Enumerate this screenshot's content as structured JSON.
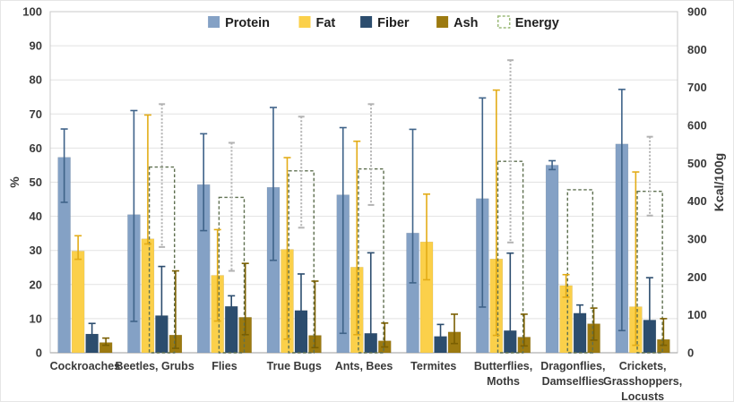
{
  "chart_data": {
    "type": "bar",
    "title": "",
    "subtitle": "",
    "grid": "horizontal",
    "legend_position": "top-center",
    "left_axis": {
      "label": "%",
      "min": 0,
      "max": 100,
      "step": 10
    },
    "right_axis": {
      "label": "Kcal/100g",
      "min": 0,
      "max": 900,
      "step": 100
    },
    "categories": [
      [
        "Cockroaches"
      ],
      [
        "Beetles, Grubs"
      ],
      [
        "Flies"
      ],
      [
        "True Bugs"
      ],
      [
        "Ants, Bees"
      ],
      [
        "Termites"
      ],
      [
        "Butterflies,",
        "Moths"
      ],
      [
        "Dragonflies,",
        "Damselflies"
      ],
      [
        "Crickets,",
        "Grasshoppers,",
        "Locusts"
      ]
    ],
    "series": [
      {
        "name": "Protein",
        "unit": "%",
        "color": "#84a1c5",
        "err_color": "#3f6389",
        "values": [
          57.3,
          40.5,
          49.3,
          48.5,
          46.3,
          35.1,
          45.2,
          55.0,
          61.2
        ],
        "err_low": [
          44.1,
          9.2,
          35.8,
          27.1,
          5.7,
          20.5,
          13.4,
          53.7,
          6.5
        ],
        "err_high": [
          65.6,
          71.0,
          64.2,
          71.9,
          66.0,
          65.5,
          74.7,
          56.3,
          77.2
        ]
      },
      {
        "name": "Fat",
        "unit": "%",
        "color": "#fbd04a",
        "err_color": "#e3ac17",
        "values": [
          29.8,
          33.4,
          22.7,
          30.3,
          25.1,
          32.5,
          27.5,
          19.7,
          13.5
        ],
        "err_low": [
          27.4,
          31.9,
          9.3,
          4.0,
          5.3,
          21.4,
          5.1,
          16.3,
          2.2
        ],
        "err_high": [
          34.3,
          69.7,
          36.1,
          57.2,
          62.0,
          46.5,
          77.0,
          22.9,
          53.0
        ]
      },
      {
        "name": "Fiber",
        "unit": "%",
        "color": "#2c4d6e",
        "err_color": "#2c4d6e",
        "values": [
          5.5,
          10.9,
          13.6,
          12.4,
          5.7,
          4.8,
          6.5,
          11.6,
          9.6
        ],
        "err_low": [
          3.0,
          1.0,
          10.4,
          2.0,
          1.4,
          2.2,
          1.0,
          9.2,
          1.4
        ],
        "err_high": [
          8.6,
          25.3,
          16.7,
          23.1,
          29.3,
          8.3,
          29.2,
          14.0,
          22.0
        ]
      },
      {
        "name": "Ash",
        "unit": "%",
        "color": "#9c7a10",
        "err_color": "#7a5f02",
        "values": [
          3.0,
          5.2,
          10.4,
          5.1,
          3.5,
          6.1,
          4.6,
          8.5,
          3.9
        ],
        "err_low": [
          2.2,
          1.3,
          5.3,
          1.5,
          1.7,
          2.7,
          2.0,
          3.7,
          2.2
        ],
        "err_high": [
          4.3,
          24.0,
          26.2,
          21.0,
          8.7,
          11.3,
          11.3,
          13.1,
          10.0
        ]
      }
    ],
    "energy": {
      "name": "Energy",
      "unit": "Kcal/100g",
      "outline_color": "#5f7050",
      "err_color": "#b3b3b3",
      "legend_swatch_border": "#9cba78",
      "values": [
        null,
        490,
        410,
        480,
        485,
        null,
        505,
        430,
        426
      ],
      "err_low": [
        null,
        279,
        216,
        330,
        390,
        null,
        291,
        null,
        362
      ],
      "err_high": [
        null,
        656,
        554,
        623,
        656,
        null,
        772,
        null,
        570
      ]
    },
    "legend": [
      "Protein",
      "Fat",
      "Fiber",
      "Ash",
      "Energy"
    ],
    "colors": {
      "gridline": "#e2e2e2",
      "plot_border": "#c9c9c9",
      "axis_line": "#b0b0b0",
      "tick_text": "#3a3a3a",
      "legend_text": "#1f1f1f"
    }
  }
}
